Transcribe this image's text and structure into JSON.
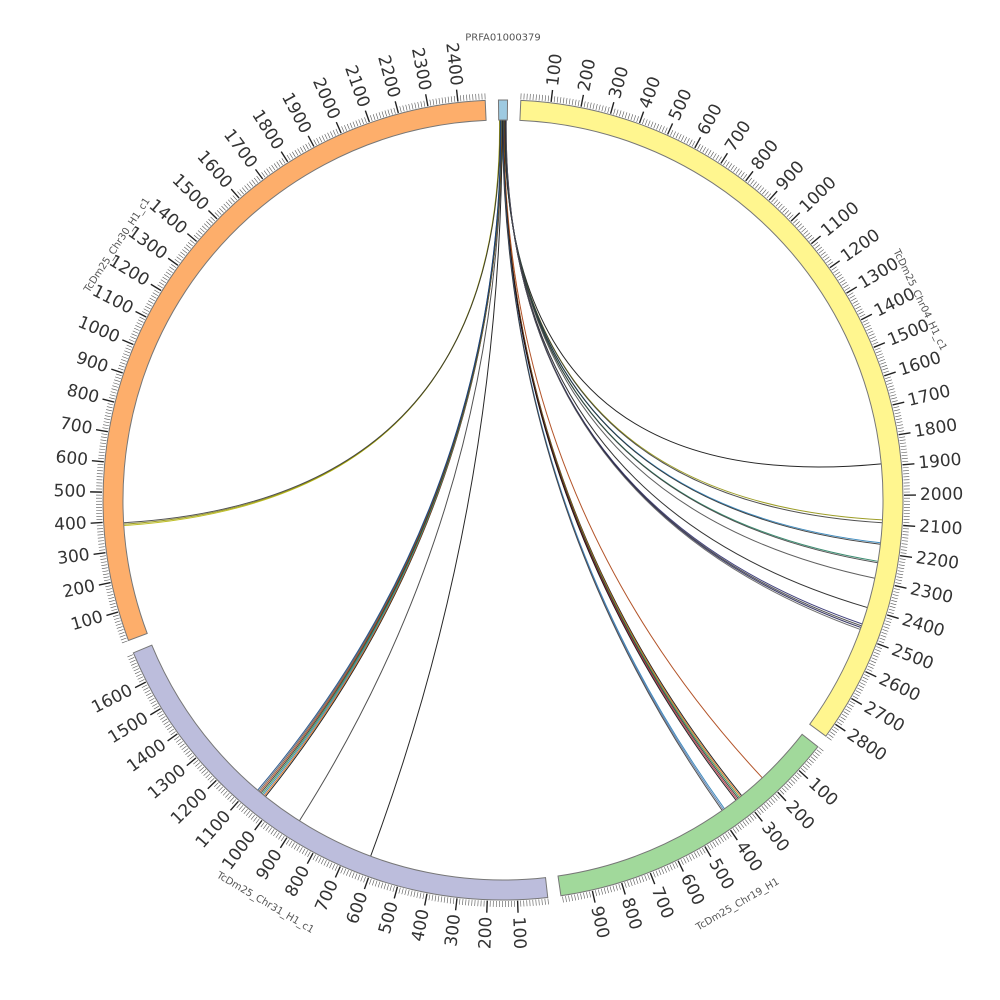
{
  "chart_data": {
    "type": "circos",
    "minor_tick_step": 10,
    "segments": [
      {
        "name": "PRFA01000379",
        "length": 30,
        "color": "#9ecae1",
        "ticks": []
      },
      {
        "name": "TcDm25_Chr04_H1_c1",
        "length": 2850,
        "color": "#fff68f",
        "ticks": [
          100,
          200,
          300,
          400,
          500,
          600,
          700,
          800,
          900,
          1000,
          1100,
          1200,
          1300,
          1400,
          1500,
          1600,
          1700,
          1800,
          1900,
          2000,
          2100,
          2200,
          2300,
          2400,
          2500,
          2600,
          2700,
          2800
        ]
      },
      {
        "name": "TcDm25_Chr19_H1",
        "length": 1005,
        "color": "#a1d99b",
        "ticks": [
          100,
          200,
          300,
          400,
          500,
          600,
          700,
          800,
          900
        ]
      },
      {
        "name": "TcDm25_Chr31_H1_c1",
        "length": 1705,
        "color": "#bcbddc",
        "ticks": [
          100,
          200,
          300,
          400,
          500,
          600,
          700,
          800,
          900,
          1000,
          1100,
          1200,
          1300,
          1400,
          1500,
          1600
        ]
      },
      {
        "name": "TcDm25_Chr30_H1_c1",
        "length": 2490,
        "color": "#fdae6b",
        "ticks": [
          100,
          200,
          300,
          400,
          500,
          600,
          700,
          800,
          900,
          1000,
          1100,
          1200,
          1300,
          1400,
          1500,
          1600,
          1700,
          1800,
          1900,
          2000,
          2100,
          2200,
          2300,
          2400
        ]
      }
    ],
    "links": [
      {
        "from": 0,
        "from_pos": 3,
        "to": 4,
        "to_pos": 385,
        "color": "#b5b500"
      },
      {
        "from": 0,
        "from_pos": 4,
        "to": 4,
        "to_pos": 390,
        "color": "#888800"
      },
      {
        "from": 0,
        "from_pos": 5,
        "to": 4,
        "to_pos": 395,
        "color": "#333333"
      },
      {
        "from": 0,
        "from_pos": 20,
        "to": 1,
        "to_pos": 1890,
        "color": "#000000"
      },
      {
        "from": 0,
        "from_pos": 21,
        "to": 1,
        "to_pos": 2085,
        "color": "#8c8c00"
      },
      {
        "from": 0,
        "from_pos": 21,
        "to": 1,
        "to_pos": 2095,
        "color": "#333333"
      },
      {
        "from": 0,
        "from_pos": 22,
        "to": 1,
        "to_pos": 2165,
        "color": "#1f78b4"
      },
      {
        "from": 0,
        "from_pos": 22,
        "to": 1,
        "to_pos": 2170,
        "color": "#222222"
      },
      {
        "from": 0,
        "from_pos": 23,
        "to": 1,
        "to_pos": 2230,
        "color": "#1b7a5a"
      },
      {
        "from": 0,
        "from_pos": 23,
        "to": 1,
        "to_pos": 2235,
        "color": "#333333"
      },
      {
        "from": 0,
        "from_pos": 24,
        "to": 1,
        "to_pos": 2290,
        "color": "#444444"
      },
      {
        "from": 0,
        "from_pos": 24,
        "to": 1,
        "to_pos": 2395,
        "color": "#111111"
      },
      {
        "from": 0,
        "from_pos": 25,
        "to": 1,
        "to_pos": 2455,
        "color": "#222266"
      },
      {
        "from": 0,
        "from_pos": 25,
        "to": 1,
        "to_pos": 2462,
        "color": "#333333"
      },
      {
        "from": 0,
        "from_pos": 26,
        "to": 1,
        "to_pos": 2468,
        "color": "#1a1a4d"
      },
      {
        "from": 0,
        "from_pos": 26,
        "to": 1,
        "to_pos": 2475,
        "color": "#555555"
      },
      {
        "from": 0,
        "from_pos": 18,
        "to": 2,
        "to_pos": 205,
        "color": "#a63603"
      },
      {
        "from": 0,
        "from_pos": 17,
        "to": 2,
        "to_pos": 300,
        "color": "#000000"
      },
      {
        "from": 0,
        "from_pos": 17,
        "to": 2,
        "to_pos": 305,
        "color": "#d95f02"
      },
      {
        "from": 0,
        "from_pos": 16,
        "to": 2,
        "to_pos": 310,
        "color": "#238b45"
      },
      {
        "from": 0,
        "from_pos": 16,
        "to": 2,
        "to_pos": 315,
        "color": "#222222"
      },
      {
        "from": 0,
        "from_pos": 15,
        "to": 2,
        "to_pos": 320,
        "color": "#b2182b"
      },
      {
        "from": 0,
        "from_pos": 15,
        "to": 2,
        "to_pos": 325,
        "color": "#000000"
      },
      {
        "from": 0,
        "from_pos": 14,
        "to": 2,
        "to_pos": 375,
        "color": "#1f78b4"
      },
      {
        "from": 0,
        "from_pos": 14,
        "to": 2,
        "to_pos": 380,
        "color": "#4a6fa5"
      },
      {
        "from": 0,
        "from_pos": 13,
        "to": 2,
        "to_pos": 385,
        "color": "#333333"
      },
      {
        "from": 0,
        "from_pos": 12,
        "to": 3,
        "to_pos": 618,
        "color": "#000000"
      },
      {
        "from": 0,
        "from_pos": 11,
        "to": 3,
        "to_pos": 895,
        "color": "#333333"
      },
      {
        "from": 0,
        "from_pos": 10,
        "to": 3,
        "to_pos": 1040,
        "color": "#000000"
      },
      {
        "from": 0,
        "from_pos": 10,
        "to": 3,
        "to_pos": 1045,
        "color": "#d95f02"
      },
      {
        "from": 0,
        "from_pos": 9,
        "to": 3,
        "to_pos": 1050,
        "color": "#1f78b4"
      },
      {
        "from": 0,
        "from_pos": 9,
        "to": 3,
        "to_pos": 1055,
        "color": "#238b45"
      },
      {
        "from": 0,
        "from_pos": 8,
        "to": 3,
        "to_pos": 1060,
        "color": "#222222"
      },
      {
        "from": 0,
        "from_pos": 8,
        "to": 3,
        "to_pos": 1065,
        "color": "#a63603"
      },
      {
        "from": 0,
        "from_pos": 7,
        "to": 3,
        "to_pos": 1070,
        "color": "#555555"
      },
      {
        "from": 0,
        "from_pos": 7,
        "to": 3,
        "to_pos": 1075,
        "color": "#084081"
      }
    ]
  }
}
